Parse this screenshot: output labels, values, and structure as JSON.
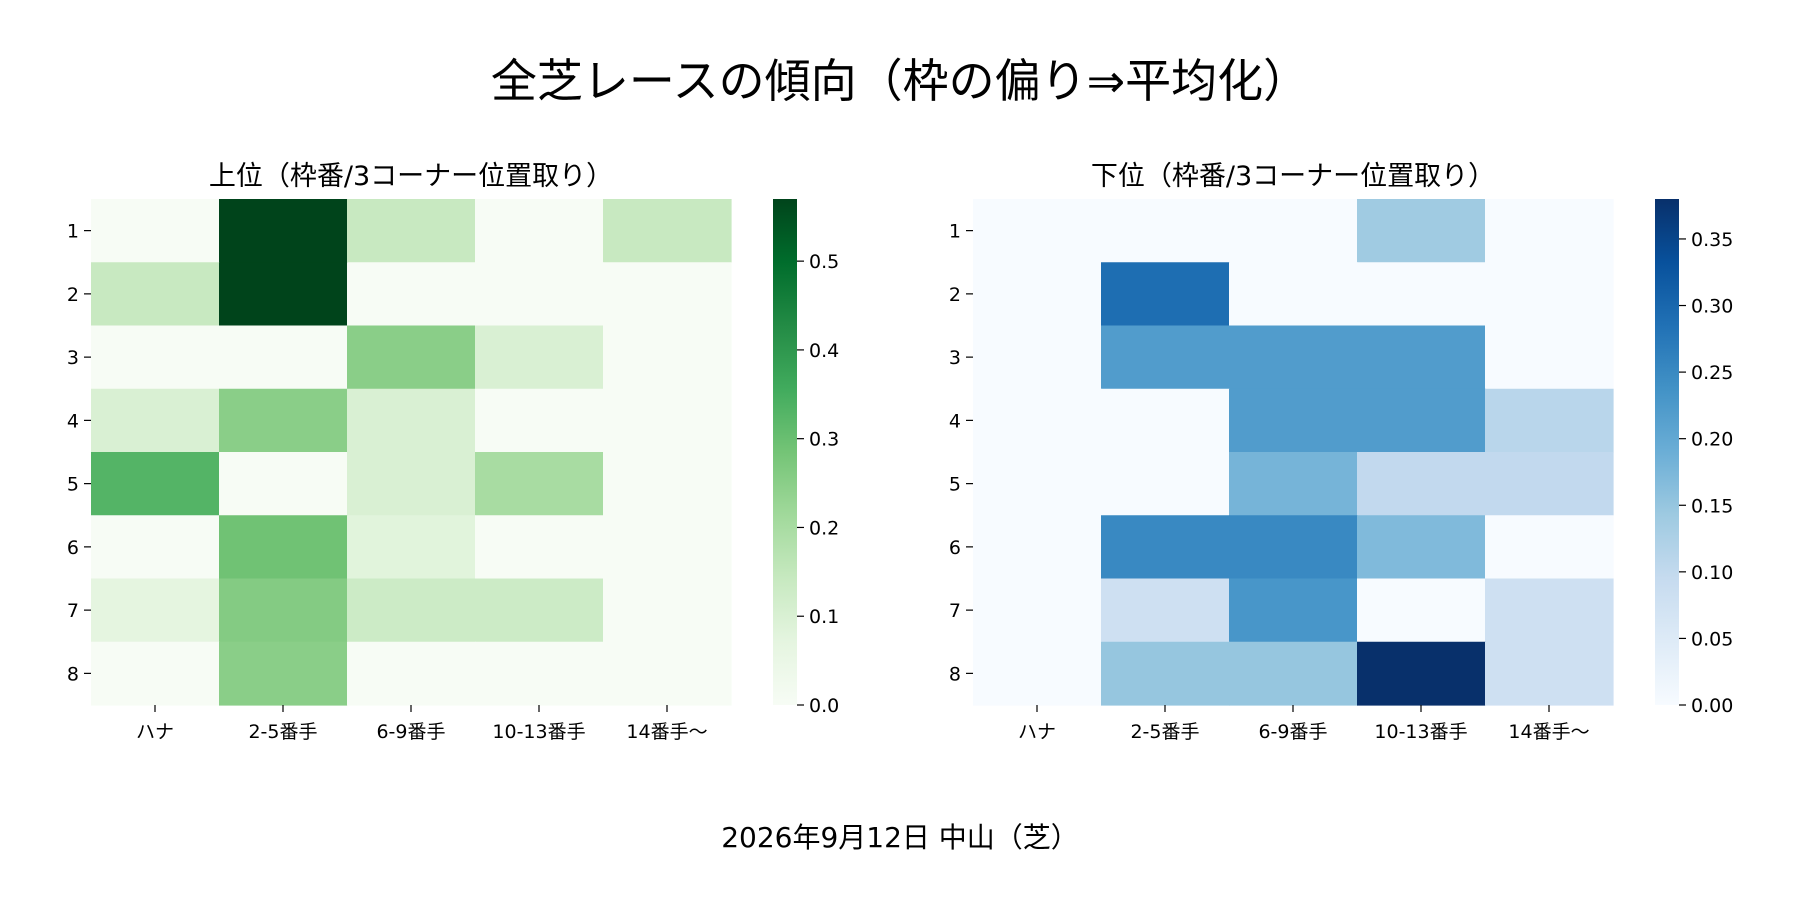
{
  "figure": {
    "title": "全芝レースの傾向（枠の偏り⇒平均化）",
    "footer": "2026年9月12日 中山（芝）"
  },
  "chart_data": [
    {
      "type": "heatmap",
      "title": "上位（枠番/3コーナー位置取り）",
      "colormap": "Greens",
      "colors": [
        "#f7fcf5",
        "#e5f5e0",
        "#c7e9c0",
        "#a1d99b",
        "#74c476",
        "#41ab5d",
        "#238b45",
        "#006d2c",
        "#00441b"
      ],
      "x_categories": [
        "ハナ",
        "2-5番手",
        "6-9番手",
        "10-13番手",
        "14番手〜"
      ],
      "y_categories": [
        "1",
        "2",
        "3",
        "4",
        "5",
        "6",
        "7",
        "8"
      ],
      "values": [
        [
          0.0,
          0.57,
          0.14,
          0.0,
          0.14
        ],
        [
          0.14,
          0.57,
          0.0,
          0.0,
          0.0
        ],
        [
          0.0,
          0.0,
          0.25,
          0.1,
          0.0
        ],
        [
          0.1,
          0.25,
          0.1,
          0.0,
          0.0
        ],
        [
          0.33,
          0.0,
          0.1,
          0.2,
          0.0
        ],
        [
          0.0,
          0.29,
          0.08,
          0.0,
          0.0
        ],
        [
          0.07,
          0.26,
          0.13,
          0.13,
          0.0
        ],
        [
          0.0,
          0.25,
          0.0,
          0.0,
          0.0
        ]
      ],
      "vmin": 0,
      "vmax": 0.57,
      "colorbar_ticks": [
        "0.0",
        "0.1",
        "0.2",
        "0.3",
        "0.4",
        "0.5"
      ],
      "colorbar_tick_values": [
        0.0,
        0.1,
        0.2,
        0.3,
        0.4,
        0.5
      ]
    },
    {
      "type": "heatmap",
      "title": "下位（枠番/3コーナー位置取り）",
      "colormap": "Blues",
      "colors": [
        "#f7fbff",
        "#deebf7",
        "#c6dbef",
        "#9ecae1",
        "#6baed6",
        "#4292c6",
        "#2171b5",
        "#08519c",
        "#08306b"
      ],
      "x_categories": [
        "ハナ",
        "2-5番手",
        "6-9番手",
        "10-13番手",
        "14番手〜"
      ],
      "y_categories": [
        "1",
        "2",
        "3",
        "4",
        "5",
        "6",
        "7",
        "8"
      ],
      "values": [
        [
          0.0,
          0.0,
          0.0,
          0.14,
          0.0
        ],
        [
          0.0,
          0.29,
          0.0,
          0.0,
          0.0
        ],
        [
          0.0,
          0.22,
          0.22,
          0.22,
          0.0
        ],
        [
          0.0,
          0.0,
          0.22,
          0.22,
          0.11
        ],
        [
          0.0,
          0.0,
          0.18,
          0.1,
          0.1
        ],
        [
          0.0,
          0.25,
          0.25,
          0.17,
          0.0
        ],
        [
          0.0,
          0.08,
          0.23,
          0.0,
          0.08
        ],
        [
          0.0,
          0.15,
          0.15,
          0.38,
          0.08
        ]
      ],
      "vmin": 0,
      "vmax": 0.38,
      "colorbar_ticks": [
        "0.00",
        "0.05",
        "0.10",
        "0.15",
        "0.20",
        "0.25",
        "0.30",
        "0.35"
      ],
      "colorbar_tick_values": [
        0.0,
        0.05,
        0.1,
        0.15,
        0.2,
        0.25,
        0.3,
        0.35
      ]
    }
  ]
}
